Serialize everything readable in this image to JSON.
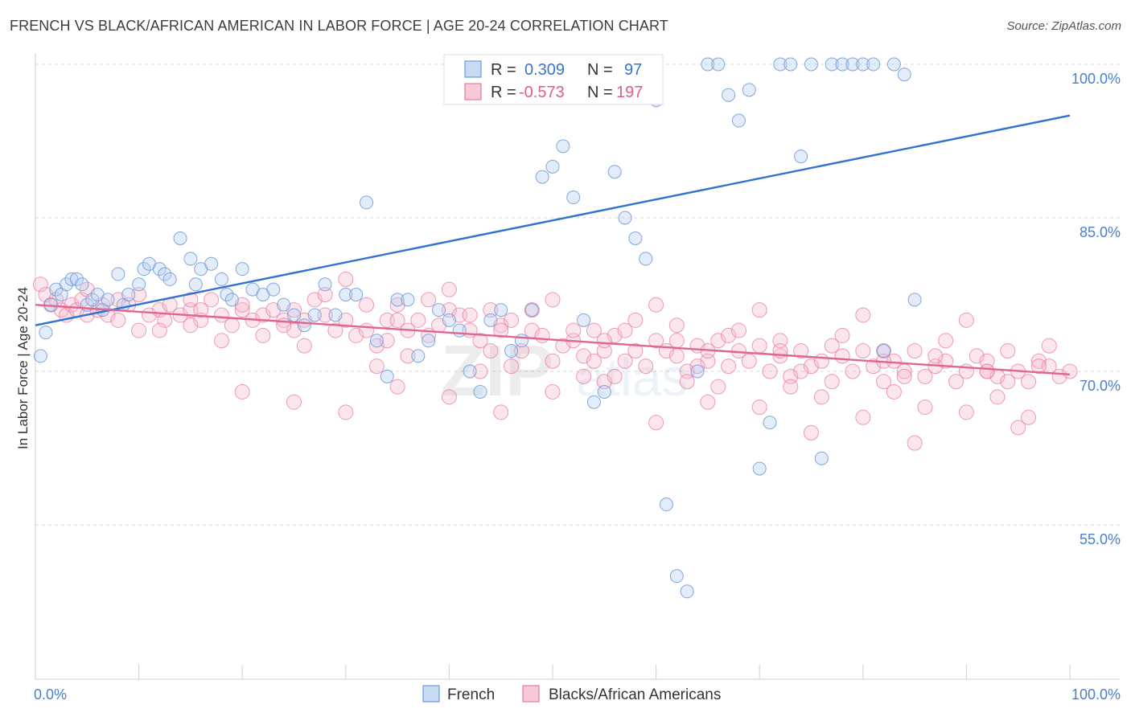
{
  "title": "FRENCH VS BLACK/AFRICAN AMERICAN IN LABOR FORCE | AGE 20-24 CORRELATION CHART",
  "source": "Source: ZipAtlas.com",
  "watermark": {
    "zip": "ZIP",
    "atlas": "atlas"
  },
  "colors": {
    "french": "#6d9ad6",
    "black": "#e87aa0",
    "french_line": "#2f72d0",
    "black_line": "#e0668f"
  },
  "legend": {
    "r_label": "R =",
    "n_label": "N =",
    "french_r": "0.309",
    "french_n": "97",
    "black_r": "-0.573",
    "black_n": "197"
  },
  "chart_data": {
    "type": "scatter",
    "title": "FRENCH VS BLACK/AFRICAN AMERICAN IN LABOR FORCE | AGE 20-24 CORRELATION CHART",
    "xlabel": "",
    "ylabel": "In Labor Force | Age 20-24",
    "xlim": [
      0,
      100
    ],
    "ylim": [
      40,
      103
    ],
    "x_tick_labels": [
      "0.0%",
      "100.0%"
    ],
    "y_ticks": [
      55,
      70,
      85,
      100
    ],
    "y_tick_labels": [
      "55.0%",
      "70.0%",
      "85.0%",
      "100.0%"
    ],
    "grid": true,
    "legend_position": "top-center",
    "series": [
      {
        "name": "French",
        "r": 0.309,
        "n": 97,
        "trend": {
          "x0": 0,
          "y0": 74.5,
          "x1": 100,
          "y1": 95.0
        },
        "points": [
          [
            0.5,
            71.5
          ],
          [
            1,
            73.8
          ],
          [
            1.5,
            76.5
          ],
          [
            2,
            78
          ],
          [
            2.5,
            77.5
          ],
          [
            3,
            78.5
          ],
          [
            3.5,
            79
          ],
          [
            4,
            79
          ],
          [
            4.5,
            78.5
          ],
          [
            5,
            76.5
          ],
          [
            5.5,
            77
          ],
          [
            6,
            77.5
          ],
          [
            6.5,
            76
          ],
          [
            7,
            77
          ],
          [
            8,
            79.5
          ],
          [
            8.5,
            76.5
          ],
          [
            9,
            77.5
          ],
          [
            10,
            78.5
          ],
          [
            10.5,
            80
          ],
          [
            11,
            80.5
          ],
          [
            12,
            80
          ],
          [
            12.5,
            79.5
          ],
          [
            13,
            79
          ],
          [
            14,
            83
          ],
          [
            15,
            81
          ],
          [
            15.5,
            78.5
          ],
          [
            16,
            80
          ],
          [
            17,
            80.5
          ],
          [
            18,
            79
          ],
          [
            18.5,
            77.5
          ],
          [
            19,
            77
          ],
          [
            20,
            80
          ],
          [
            21,
            78
          ],
          [
            22,
            77.5
          ],
          [
            23,
            78
          ],
          [
            24,
            76.5
          ],
          [
            25,
            75.5
          ],
          [
            26,
            74.5
          ],
          [
            27,
            75.5
          ],
          [
            28,
            78.5
          ],
          [
            29,
            75.5
          ],
          [
            30,
            77.5
          ],
          [
            31,
            77.5
          ],
          [
            32,
            86.5
          ],
          [
            33,
            73
          ],
          [
            34,
            69.5
          ],
          [
            35,
            77
          ],
          [
            36,
            77
          ],
          [
            37,
            71.5
          ],
          [
            38,
            73
          ],
          [
            39,
            76
          ],
          [
            40,
            75
          ],
          [
            41,
            74
          ],
          [
            42,
            70
          ],
          [
            43,
            68
          ],
          [
            44,
            75
          ],
          [
            45,
            76
          ],
          [
            46,
            72
          ],
          [
            47,
            73
          ],
          [
            48,
            76
          ],
          [
            49,
            89
          ],
          [
            50,
            90
          ],
          [
            51,
            92
          ],
          [
            52,
            87
          ],
          [
            53,
            75
          ],
          [
            54,
            67
          ],
          [
            55,
            68
          ],
          [
            56,
            89.5
          ],
          [
            57,
            85
          ],
          [
            58,
            83
          ],
          [
            59,
            81
          ],
          [
            60,
            96.5
          ],
          [
            61,
            57
          ],
          [
            62,
            50
          ],
          [
            63,
            48.5
          ],
          [
            64,
            70
          ],
          [
            65,
            100
          ],
          [
            66,
            100
          ],
          [
            67,
            97
          ],
          [
            68,
            94.5
          ],
          [
            69,
            97.5
          ],
          [
            70,
            60.5
          ],
          [
            71,
            65
          ],
          [
            72,
            100
          ],
          [
            73,
            100
          ],
          [
            74,
            91
          ],
          [
            75,
            100
          ],
          [
            76,
            61.5
          ],
          [
            77,
            100
          ],
          [
            78,
            100
          ],
          [
            79,
            100
          ],
          [
            80,
            100
          ],
          [
            81,
            100
          ],
          [
            82,
            72
          ],
          [
            83,
            100
          ],
          [
            84,
            99
          ],
          [
            85,
            77
          ]
        ]
      },
      {
        "name": "Blacks/African Americans",
        "r": -0.573,
        "n": 197,
        "trend": {
          "x0": 0,
          "y0": 76.5,
          "x1": 100,
          "y1": 69.7
        },
        "points": [
          [
            0.5,
            78.5
          ],
          [
            1,
            77.5
          ],
          [
            1.5,
            76.5
          ],
          [
            2,
            77
          ],
          [
            2.5,
            76
          ],
          [
            3,
            75.5
          ],
          [
            3.5,
            76.5
          ],
          [
            4,
            76
          ],
          [
            4.5,
            77
          ],
          [
            5,
            75.5
          ],
          [
            6,
            76
          ],
          [
            6.5,
            76.5
          ],
          [
            7,
            75.5
          ],
          [
            8,
            77
          ],
          [
            9,
            76.5
          ],
          [
            10,
            74
          ],
          [
            11,
            75.5
          ],
          [
            12,
            76
          ],
          [
            12.5,
            75
          ],
          [
            13,
            76.5
          ],
          [
            14,
            75.5
          ],
          [
            15,
            76
          ],
          [
            16,
            75
          ],
          [
            17,
            77
          ],
          [
            18,
            75.5
          ],
          [
            19,
            74.5
          ],
          [
            20,
            76
          ],
          [
            21,
            75
          ],
          [
            22,
            75.5
          ],
          [
            23,
            76
          ],
          [
            24,
            75
          ],
          [
            25,
            74
          ],
          [
            26,
            75
          ],
          [
            27,
            77
          ],
          [
            28,
            75.5
          ],
          [
            29,
            74
          ],
          [
            30,
            75
          ],
          [
            31,
            73.5
          ],
          [
            32,
            74
          ],
          [
            33,
            72.5
          ],
          [
            34,
            75
          ],
          [
            35,
            76.5
          ],
          [
            36,
            74
          ],
          [
            37,
            75
          ],
          [
            38,
            73.5
          ],
          [
            39,
            74.5
          ],
          [
            40,
            76
          ],
          [
            41,
            75.5
          ],
          [
            42,
            74
          ],
          [
            43,
            73
          ],
          [
            44,
            76
          ],
          [
            45,
            74.5
          ],
          [
            46,
            75
          ],
          [
            47,
            72
          ],
          [
            48,
            74
          ],
          [
            49,
            73.5
          ],
          [
            50,
            71
          ],
          [
            51,
            72.5
          ],
          [
            52,
            73
          ],
          [
            53,
            71.5
          ],
          [
            54,
            74
          ],
          [
            55,
            72
          ],
          [
            56,
            73.5
          ],
          [
            57,
            71
          ],
          [
            58,
            72
          ],
          [
            59,
            70.5
          ],
          [
            60,
            73
          ],
          [
            61,
            72
          ],
          [
            62,
            71.5
          ],
          [
            63,
            70
          ],
          [
            64,
            72.5
          ],
          [
            65,
            71
          ],
          [
            66,
            73
          ],
          [
            67,
            70.5
          ],
          [
            68,
            72
          ],
          [
            69,
            71
          ],
          [
            70,
            72.5
          ],
          [
            71,
            70
          ],
          [
            72,
            71.5
          ],
          [
            73,
            69.5
          ],
          [
            74,
            72
          ],
          [
            75,
            70.5
          ],
          [
            76,
            71
          ],
          [
            77,
            69
          ],
          [
            78,
            71.5
          ],
          [
            79,
            70
          ],
          [
            80,
            72
          ],
          [
            81,
            70.5
          ],
          [
            82,
            69
          ],
          [
            83,
            71
          ],
          [
            84,
            70
          ],
          [
            85,
            72
          ],
          [
            86,
            69.5
          ],
          [
            87,
            70.5
          ],
          [
            88,
            71
          ],
          [
            89,
            69
          ],
          [
            90,
            70
          ],
          [
            91,
            71.5
          ],
          [
            92,
            70
          ],
          [
            93,
            69.5
          ],
          [
            94,
            72
          ],
          [
            95,
            70
          ],
          [
            96,
            69
          ],
          [
            97,
            71
          ],
          [
            98,
            70.5
          ],
          [
            99,
            69.5
          ],
          [
            100,
            70
          ],
          [
            20,
            68
          ],
          [
            25,
            67
          ],
          [
            30,
            66
          ],
          [
            35,
            68.5
          ],
          [
            40,
            67.5
          ],
          [
            45,
            66
          ],
          [
            50,
            68
          ],
          [
            55,
            69
          ],
          [
            60,
            65
          ],
          [
            65,
            67
          ],
          [
            70,
            66.5
          ],
          [
            75,
            64
          ],
          [
            80,
            65.5
          ],
          [
            85,
            63
          ],
          [
            90,
            66
          ],
          [
            95,
            64.5
          ],
          [
            57,
            74
          ],
          [
            62,
            74.5
          ],
          [
            67,
            73.5
          ],
          [
            72,
            73
          ],
          [
            77,
            72.5
          ],
          [
            82,
            72
          ],
          [
            87,
            71.5
          ],
          [
            92,
            71
          ],
          [
            97,
            70.5
          ],
          [
            30,
            79
          ],
          [
            40,
            78
          ],
          [
            50,
            77
          ],
          [
            60,
            76.5
          ],
          [
            70,
            76
          ],
          [
            80,
            75.5
          ],
          [
            90,
            75
          ],
          [
            33,
            70.5
          ],
          [
            43,
            70
          ],
          [
            53,
            69.5
          ],
          [
            63,
            69
          ],
          [
            73,
            68.5
          ],
          [
            83,
            68
          ],
          [
            93,
            67.5
          ],
          [
            15,
            74.5
          ],
          [
            18,
            73
          ],
          [
            22,
            73.5
          ],
          [
            26,
            72.5
          ],
          [
            36,
            71.5
          ],
          [
            46,
            70.5
          ],
          [
            56,
            69.5
          ],
          [
            66,
            68.5
          ],
          [
            76,
            67.5
          ],
          [
            86,
            66.5
          ],
          [
            96,
            65.5
          ],
          [
            28,
            77.5
          ],
          [
            38,
            77
          ],
          [
            48,
            76
          ],
          [
            58,
            75
          ],
          [
            68,
            74
          ],
          [
            78,
            73.5
          ],
          [
            88,
            73
          ],
          [
            98,
            72.5
          ],
          [
            12,
            74
          ],
          [
            24,
            74.5
          ],
          [
            34,
            73
          ],
          [
            44,
            72
          ],
          [
            54,
            71
          ],
          [
            64,
            70.5
          ],
          [
            74,
            70
          ],
          [
            84,
            69.5
          ],
          [
            94,
            69
          ],
          [
            8,
            75
          ],
          [
            16,
            76
          ],
          [
            32,
            76.5
          ],
          [
            42,
            75.5
          ],
          [
            52,
            74
          ],
          [
            62,
            73
          ],
          [
            72,
            72
          ],
          [
            82,
            71
          ],
          [
            92,
            70
          ],
          [
            5,
            78
          ],
          [
            10,
            77.5
          ],
          [
            15,
            77
          ],
          [
            20,
            76.5
          ],
          [
            25,
            76
          ],
          [
            35,
            75
          ],
          [
            45,
            74
          ],
          [
            55,
            73
          ],
          [
            65,
            72
          ]
        ]
      }
    ]
  }
}
